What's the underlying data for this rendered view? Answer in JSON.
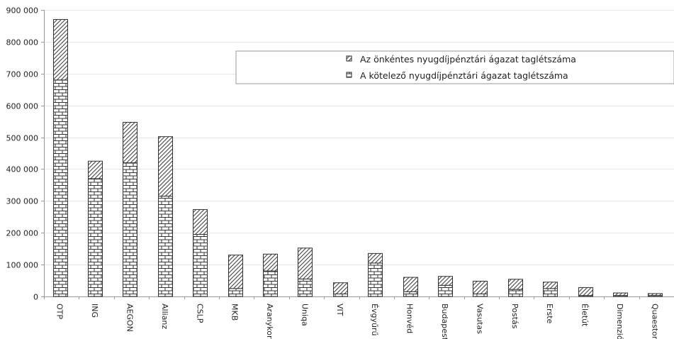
{
  "chart_data": {
    "type": "bar",
    "stacked": true,
    "categories": [
      "OTP",
      "ING",
      "AEGON",
      "Allianz",
      "CSLP",
      "MKB",
      "Aranykor",
      "Uniqa",
      "VIT",
      "Évgyűrű",
      "Honvéd",
      "Budapest",
      "Vasutas",
      "Postás",
      "Erste",
      "Életút",
      "Dimenzió",
      "Quaestor"
    ],
    "series": [
      {
        "name": "A kötelező nyugdíjpénztári ágazat taglétszáma",
        "pattern": "brick",
        "values": [
          680000,
          370000,
          420000,
          315000,
          195000,
          25000,
          80000,
          55000,
          8000,
          105000,
          15000,
          35000,
          8000,
          22000,
          25000,
          3000,
          3000,
          3000
        ]
      },
      {
        "name": "Az önkéntes nyugdíjpénztári ágazat taglétszáma",
        "pattern": "diagonal",
        "values": [
          190000,
          55000,
          127000,
          187000,
          78000,
          105000,
          53000,
          97000,
          35000,
          30000,
          45000,
          28000,
          40000,
          32000,
          20000,
          25000,
          8000,
          6000
        ]
      }
    ],
    "y_ticks": [
      "0",
      "100 000",
      "200 000",
      "300 000",
      "400 000",
      "500 000",
      "600 000",
      "700 000",
      "800 000",
      "900 000"
    ],
    "ylim": [
      0,
      900000
    ],
    "grid": true,
    "legend_position": "top-right"
  }
}
